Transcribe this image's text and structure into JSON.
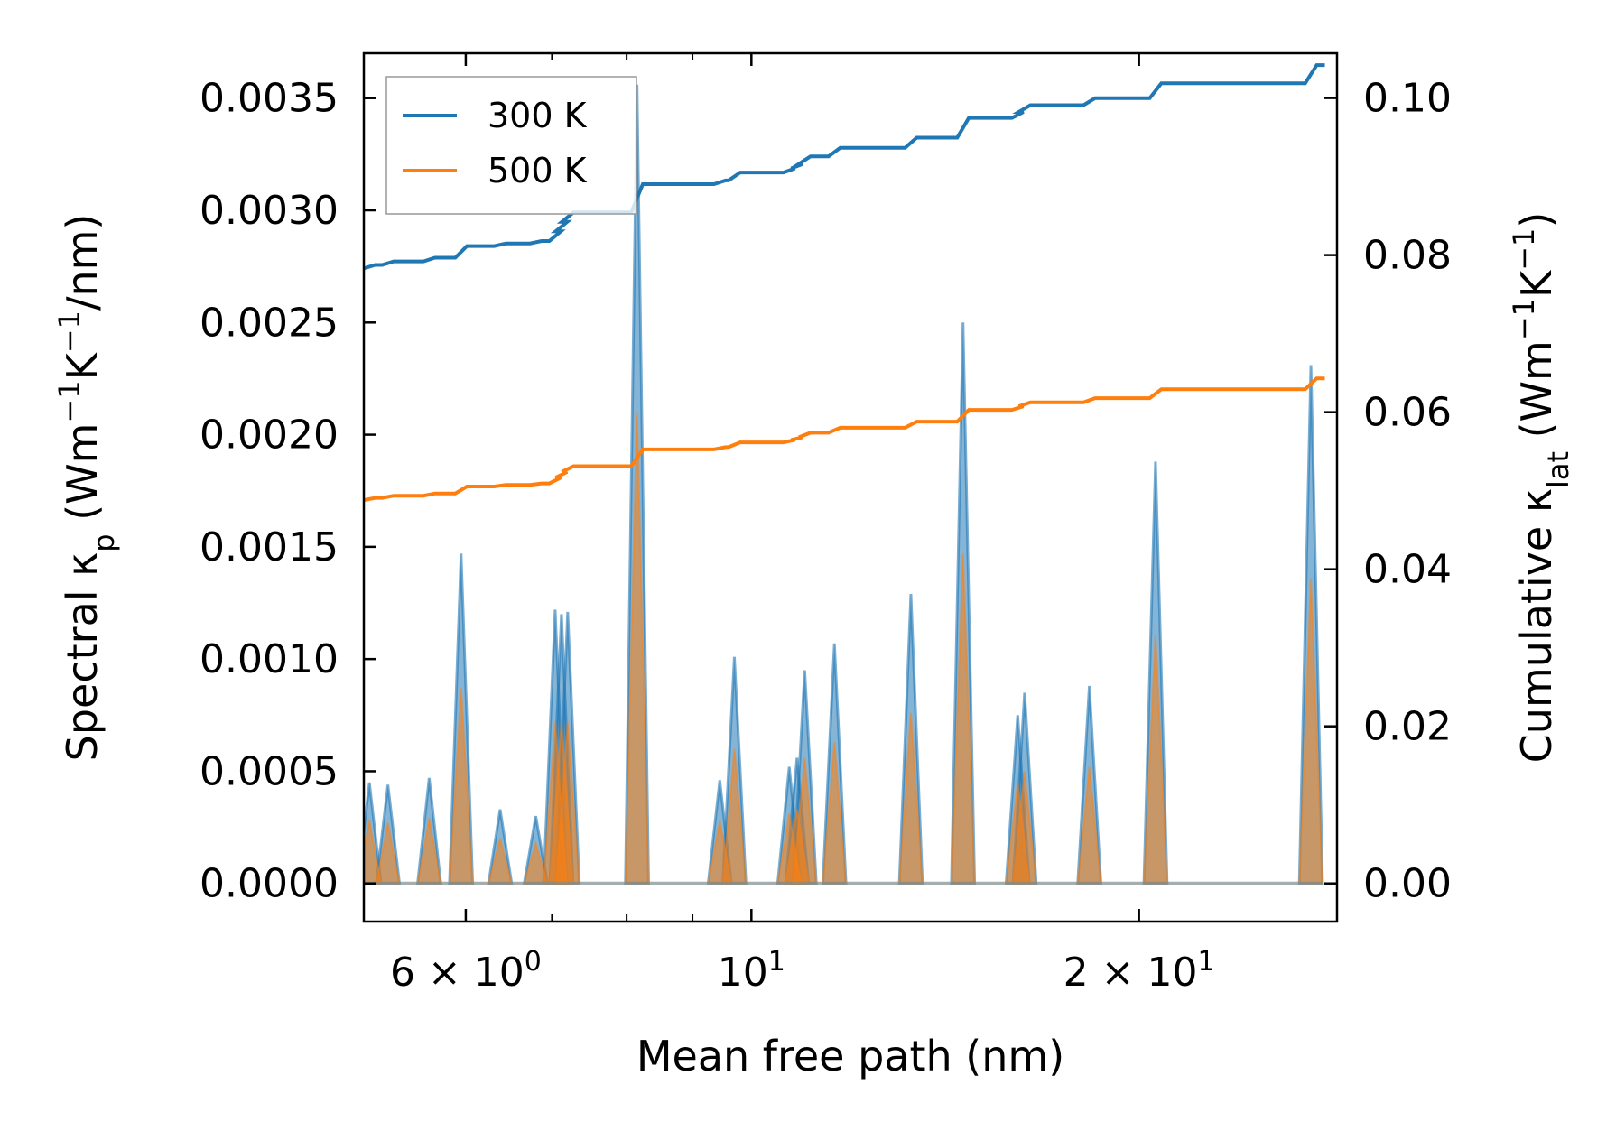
{
  "chart_data": {
    "type": "line",
    "xscale": "log",
    "xlabel": "Mean free path (nm)",
    "ylabel_left_prefix": "Spectral κ",
    "ylabel_left_sub": "p",
    "ylabel_left_unit_open": " (Wm",
    "ylabel_left_sup1": "−1",
    "ylabel_left_unit_mid": "K",
    "ylabel_left_sup2": "−1",
    "ylabel_left_unit_close": "/nm)",
    "ylabel_right_prefix": "Cumulative κ",
    "ylabel_right_sub": "lat",
    "ylabel_right_unit_open": " (Wm",
    "ylabel_right_sup1": "−1",
    "ylabel_right_unit_mid": "K",
    "ylabel_right_sup2": "−1",
    "ylabel_right_unit_close": ")",
    "xlim": [
      5.0,
      28.5
    ],
    "ylim_left": [
      -0.00017,
      0.0037
    ],
    "ylim_right": [
      -0.00486,
      0.1057
    ],
    "x_ticks_major": [
      {
        "value": 6,
        "base": "6 × 10",
        "exp": "0"
      },
      {
        "value": 10,
        "base": "10",
        "exp": "1"
      },
      {
        "value": 20,
        "base": "2 × 10",
        "exp": "1"
      }
    ],
    "x_ticks_minor": [
      5.0,
      7.0,
      8.0,
      9.0
    ],
    "y_ticks_left": [
      {
        "value": 0.0,
        "label": "0.0000"
      },
      {
        "value": 0.0005,
        "label": "0.0005"
      },
      {
        "value": 0.001,
        "label": "0.0010"
      },
      {
        "value": 0.0015,
        "label": "0.0015"
      },
      {
        "value": 0.002,
        "label": "0.0020"
      },
      {
        "value": 0.0025,
        "label": "0.0025"
      },
      {
        "value": 0.003,
        "label": "0.0030"
      },
      {
        "value": 0.0035,
        "label": "0.0035"
      }
    ],
    "y_ticks_right": [
      {
        "value": 0.0,
        "label": "0.00"
      },
      {
        "value": 0.02,
        "label": "0.02"
      },
      {
        "value": 0.04,
        "label": "0.04"
      },
      {
        "value": 0.06,
        "label": "0.06"
      },
      {
        "value": 0.08,
        "label": "0.08"
      },
      {
        "value": 0.1,
        "label": "0.10"
      }
    ],
    "legend": {
      "position": "upper-left",
      "entries": [
        "300 K",
        "500 K"
      ]
    },
    "spectral_peaks": [
      {
        "x": 5.05,
        "h300": 0.00045,
        "h500": 0.00028
      },
      {
        "x": 5.22,
        "h300": 0.00044,
        "h500": 0.00027
      },
      {
        "x": 5.62,
        "h300": 0.00047,
        "h500": 0.00029
      },
      {
        "x": 5.95,
        "h300": 0.00147,
        "h500": 0.00087
      },
      {
        "x": 6.38,
        "h300": 0.00033,
        "h500": 0.0002
      },
      {
        "x": 6.8,
        "h300": 0.0003,
        "h500": 0.00018
      },
      {
        "x": 7.04,
        "h300": 0.00122,
        "h500": 0.00072
      },
      {
        "x": 7.12,
        "h300": 0.0012,
        "h500": 0.00072
      },
      {
        "x": 7.2,
        "h300": 0.00121,
        "h500": 0.00072
      },
      {
        "x": 8.15,
        "h300": 0.00356,
        "h500": 0.0021
      },
      {
        "x": 9.45,
        "h300": 0.00046,
        "h500": 0.00028
      },
      {
        "x": 9.7,
        "h300": 0.00101,
        "h500": 0.0006
      },
      {
        "x": 10.7,
        "h300": 0.00052,
        "h500": 0.00031
      },
      {
        "x": 10.85,
        "h300": 0.00056,
        "h500": 0.00033
      },
      {
        "x": 11.0,
        "h300": 0.00095,
        "h500": 0.00056
      },
      {
        "x": 11.6,
        "h300": 0.00107,
        "h500": 0.00063
      },
      {
        "x": 13.3,
        "h300": 0.00129,
        "h500": 0.00076
      },
      {
        "x": 14.6,
        "h300": 0.0025,
        "h500": 0.00147
      },
      {
        "x": 16.1,
        "h300": 0.00075,
        "h500": 0.00045
      },
      {
        "x": 16.3,
        "h300": 0.00085,
        "h500": 0.0005
      },
      {
        "x": 18.3,
        "h300": 0.00088,
        "h500": 0.00052
      },
      {
        "x": 20.6,
        "h300": 0.00188,
        "h500": 0.00111
      },
      {
        "x": 27.2,
        "h300": 0.00231,
        "h500": 0.00136
      }
    ],
    "series": [
      {
        "name": "300 K",
        "color": "#1f77b4",
        "cumulative_base": 0.0783,
        "cumulative_end": 0.1042
      },
      {
        "name": "500 K",
        "color": "#ff7f0e",
        "cumulative_base": 0.0488,
        "cumulative_end": 0.0643
      }
    ]
  }
}
